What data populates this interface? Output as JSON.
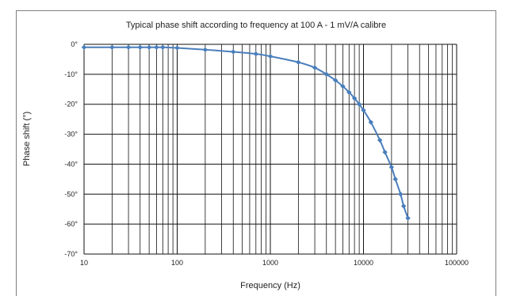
{
  "chart_data": {
    "type": "line",
    "title": "Typical phase shift according to frequency at 100 A - 1 mV/A calibre",
    "xlabel": "Frequency (Hz)",
    "ylabel": "Phase shift (°)",
    "x_scale": "log",
    "xlim": [
      10,
      100000
    ],
    "ylim": [
      -70,
      0
    ],
    "x_ticks": [
      "10",
      "100",
      "1000",
      "10000",
      "100000"
    ],
    "y_ticks": [
      "0°",
      "-10°",
      "-20°",
      "-30°",
      "-40°",
      "-50°",
      "-60°",
      "-70°"
    ],
    "grid": true,
    "legend": "none",
    "series": [
      {
        "color": "#4a7ebb",
        "x": [
          10,
          20,
          30,
          40,
          50,
          60,
          70,
          100,
          200,
          400,
          700,
          1000,
          2000,
          3000,
          4000,
          5000,
          6000,
          7000,
          8000,
          9000,
          10000,
          12000,
          15000,
          17000,
          20000,
          22000,
          25000,
          27000,
          30000
        ],
        "y": [
          -1,
          -1,
          -1,
          -1,
          -1,
          -1,
          -1,
          -1.2,
          -1.8,
          -2.5,
          -3.2,
          -4,
          -6,
          -7.8,
          -10,
          -12,
          -14,
          -16,
          -18,
          -20,
          -22,
          -26,
          -32,
          -36,
          -41,
          -45,
          -50,
          -54,
          -58
        ]
      }
    ]
  }
}
